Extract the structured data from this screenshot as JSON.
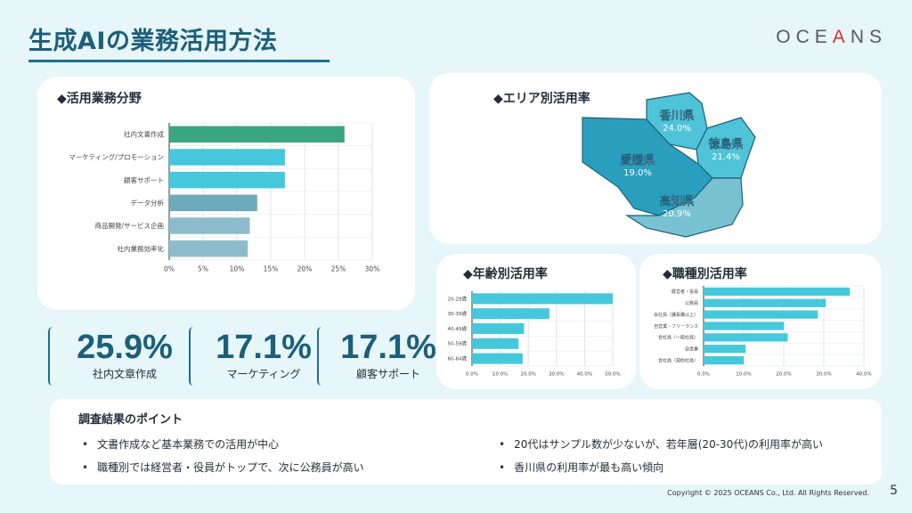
{
  "header": {
    "title": "生成AIの業務活用方法",
    "logo_pre": "OCE",
    "logo_accent": "A",
    "logo_post": "NS",
    "logo_accent_color": "#e03030"
  },
  "colors": {
    "dark_teal": "#1d5f7a",
    "bar_green": "#3aa57f",
    "bar_cyan": "#45c8dc",
    "bar_steel": "#6eaabb",
    "bar_lightsteel": "#8cbccb"
  },
  "sections": {
    "business": "◆活用業務分野",
    "area": "◆エリア別活用率",
    "age": "◆年齢別活用率",
    "job": "◆職種別活用率"
  },
  "chart_data": [
    {
      "type": "bar",
      "orientation": "horizontal",
      "categories": [
        "社内文書作成",
        "マーケティング/プロモーション",
        "顧客サポート",
        "データ分析",
        "商品開発/サービス企画",
        "社内業務効率化"
      ],
      "values": [
        25.9,
        17.1,
        17.1,
        13.0,
        11.9,
        11.6
      ],
      "bar_colors": [
        "#3aa57f",
        "#45c8dc",
        "#45c8dc",
        "#6eaabb",
        "#8cbccb",
        "#8cbccb"
      ],
      "ticks": [
        "0%",
        "5%",
        "10%",
        "15%",
        "20%",
        "25%",
        "30%"
      ],
      "xlim": [
        0,
        30
      ],
      "grid": true
    },
    {
      "type": "map",
      "regions": [
        {
          "name": "香川県",
          "value": "24.0%"
        },
        {
          "name": "徳島県",
          "value": "21.4%"
        },
        {
          "name": "愛媛県",
          "value": "19.0%"
        },
        {
          "name": "高知県",
          "value": "20.9%"
        }
      ]
    },
    {
      "type": "bar",
      "orientation": "horizontal",
      "categories": [
        "20-29歳",
        "30-39歳",
        "40-49歳",
        "50-59歳",
        "60-64歳"
      ],
      "values": [
        50.0,
        27.5,
        18.5,
        16.5,
        18.0
      ],
      "ticks": [
        "0.0%",
        "10.0%",
        "20.0%",
        "30.0%",
        "40.0%",
        "50.0%"
      ],
      "xlim": [
        0,
        50
      ],
      "grid": true
    },
    {
      "type": "bar",
      "orientation": "horizontal",
      "categories": [
        "経営者・役員",
        "公務員",
        "会社員（課長職以上）",
        "自営業・フリーランス",
        "会社員（一般社員）",
        "自営業",
        "会社員（契約社員）"
      ],
      "values": [
        36.5,
        30.5,
        28.5,
        20.0,
        21.0,
        10.5,
        10.0
      ],
      "ticks": [
        "0.0%",
        "10.0%",
        "20.0%",
        "30.0%",
        "40.0%"
      ],
      "xlim": [
        0,
        40
      ],
      "grid": true
    }
  ],
  "kpis": [
    {
      "value": "25.9%",
      "label": "社内文章作成"
    },
    {
      "value": "17.1%",
      "label": "マーケティング"
    },
    {
      "value": "17.1%",
      "label": "顧客サポート"
    }
  ],
  "points": {
    "title": "調査結果のポイント",
    "items": [
      "文書作成など基本業務での活用が中心",
      "職種別では経営者・役員がトップで、次に公務員が高い",
      "20代はサンプル数が少ないが、若年層(20-30代)の利用率が高い",
      "香川県の利用率が最も高い傾向"
    ]
  },
  "footer": {
    "copyright": "Copyright © 2025 OCEANS Co., Ltd.  All Rights Reserved.",
    "page": "5"
  }
}
